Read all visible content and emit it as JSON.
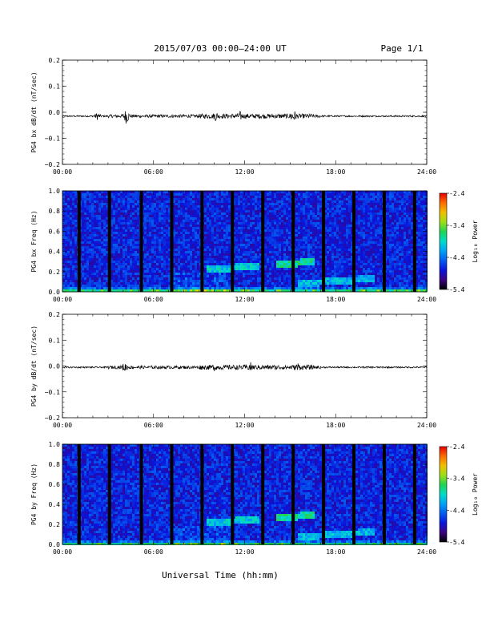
{
  "header": {
    "title": "2015/07/03  00:00–24:00 UT",
    "page": "Page 1/1"
  },
  "xlabel": "Universal Time (hh:mm)",
  "chart_data": [
    {
      "type": "line",
      "ylabel": "PG4 bx dB/dt (nT/sec)",
      "xlim": [
        0,
        24
      ],
      "ylim": [
        -0.2,
        0.2
      ],
      "x_ticks": [
        "00:00",
        "06:00",
        "12:00",
        "18:00",
        "24:00"
      ],
      "y_ticks": [
        "0.2",
        "0.1",
        "0.0",
        "−0.1",
        "−0.2"
      ],
      "baseline": -0.015,
      "bursts": [
        {
          "t": 2.3,
          "amp": 0.015
        },
        {
          "t": 4.2,
          "amp": 0.03
        },
        {
          "t": 10.1,
          "amp": 0.02
        },
        {
          "t": 11.7,
          "amp": 0.02
        },
        {
          "t": 15.2,
          "amp": 0.03
        }
      ]
    },
    {
      "type": "heatmap",
      "ylabel": "PG4 bx Freq (Hz)",
      "xlim": [
        0,
        24
      ],
      "ylim": [
        0.0,
        1.0
      ],
      "x_ticks": [
        "00:00",
        "06:00",
        "12:00",
        "18:00",
        "24:00"
      ],
      "y_ticks": [
        "1.0",
        "0.8",
        "0.6",
        "0.4",
        "0.2",
        "0.0"
      ],
      "colorbar": {
        "label": "Log₁₀ Power",
        "min": -5.4,
        "max": -2.4,
        "ticks": [
          "-2.4",
          "-3.4",
          "-4.4",
          "-5.4"
        ]
      },
      "data_gaps_hours": [
        1.1,
        3.1,
        5.2,
        7.2,
        9.2,
        11.2,
        13.2,
        15.2,
        17.2,
        19.2,
        21.2,
        23.2
      ],
      "features": [
        {
          "t_start": 14.0,
          "t_end": 16.5,
          "f": 0.27,
          "level": -3.8
        },
        {
          "t_start": 9.5,
          "t_end": 13.0,
          "f": 0.22,
          "level": -4.0
        },
        {
          "t_start": 15.5,
          "t_end": 20.5,
          "f": 0.08,
          "level": -4.1
        }
      ]
    },
    {
      "type": "line",
      "ylabel": "PG4 by dB/dt (nT/sec)",
      "xlim": [
        0,
        24
      ],
      "ylim": [
        -0.2,
        0.2
      ],
      "x_ticks": [
        "00:00",
        "06:00",
        "12:00",
        "18:00",
        "24:00"
      ],
      "y_ticks": [
        "0.2",
        "0.1",
        "0.0",
        "−0.1",
        "−0.2"
      ],
      "baseline": -0.005,
      "bursts": [
        {
          "t": 4.1,
          "amp": 0.02
        },
        {
          "t": 10.0,
          "amp": 0.015
        },
        {
          "t": 12.4,
          "amp": 0.02
        },
        {
          "t": 15.5,
          "amp": 0.02
        }
      ]
    },
    {
      "type": "heatmap",
      "ylabel": "PG4 by Freq (Hz)",
      "xlim": [
        0,
        24
      ],
      "ylim": [
        0.0,
        1.0
      ],
      "x_ticks": [
        "00:00",
        "06:00",
        "12:00",
        "18:00",
        "24:00"
      ],
      "y_ticks": [
        "1.0",
        "0.8",
        "0.6",
        "0.4",
        "0.2",
        "0.0"
      ],
      "colorbar": {
        "label": "Log₁₀ Power",
        "min": -5.4,
        "max": -2.4,
        "ticks": [
          "-2.4",
          "-3.4",
          "-4.4",
          "-5.4"
        ]
      },
      "data_gaps_hours": [
        1.1,
        3.1,
        5.2,
        7.2,
        9.2,
        11.2,
        13.2,
        15.2,
        17.2,
        19.2,
        21.2,
        23.2
      ],
      "features": [
        {
          "t_start": 14.0,
          "t_end": 16.5,
          "f": 0.27,
          "level": -3.8
        },
        {
          "t_start": 9.5,
          "t_end": 13.0,
          "f": 0.22,
          "level": -4.0
        },
        {
          "t_start": 15.5,
          "t_end": 20.5,
          "f": 0.08,
          "level": -4.1
        }
      ]
    }
  ]
}
